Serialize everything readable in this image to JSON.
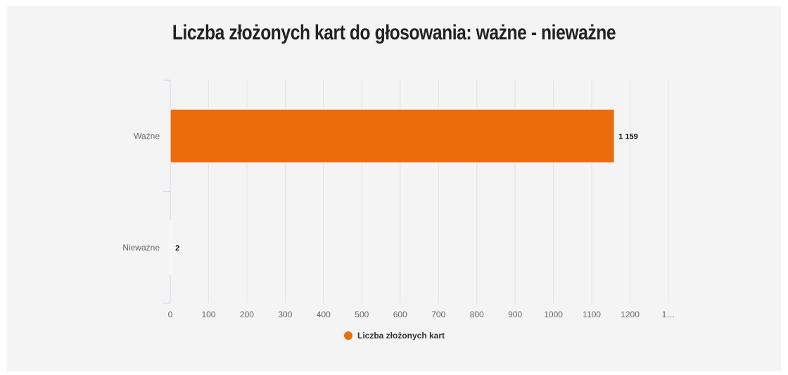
{
  "chart_data": {
    "type": "bar",
    "orientation": "horizontal",
    "title": "Liczba złożonych kart do głosowania: ważne - nieważne",
    "categories": [
      "Ważne",
      "Nieważne"
    ],
    "series": [
      {
        "name": "Liczba złożonych kart",
        "values": [
          1159,
          2
        ],
        "labels": [
          "1 159",
          "2"
        ],
        "color": "#ec6c0c"
      }
    ],
    "xlim": [
      0,
      1300
    ],
    "xticks": [
      "0",
      "100",
      "200",
      "300",
      "400",
      "500",
      "600",
      "700",
      "800",
      "900",
      "1000",
      "1100",
      "1200",
      "1…"
    ],
    "grid": true,
    "legend": "bottom-center"
  }
}
